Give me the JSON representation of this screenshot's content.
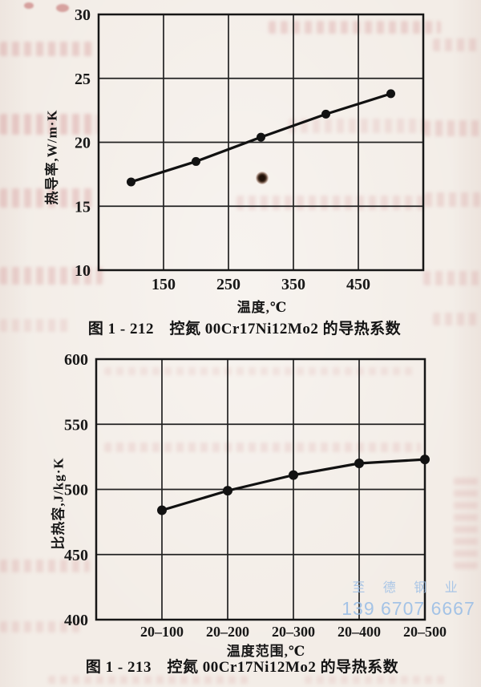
{
  "page": {
    "background_color": "#f3ede7",
    "ink_color": "#161616",
    "bleed_through_color": "#ce8082",
    "watermark": {
      "line1": "至 德 钢 业",
      "line2": "139 6707 6667",
      "color": "#97bce6"
    }
  },
  "chart_data": [
    {
      "id": "fig-1-212",
      "type": "line",
      "series": [
        {
          "name": "thermal-conductivity",
          "x": [
            100,
            200,
            300,
            400,
            500
          ],
          "values": [
            16.9,
            18.5,
            20.4,
            22.2,
            23.8
          ]
        }
      ],
      "xlabel": "温度,℃",
      "ylabel": "热导率,W/m·K",
      "caption": "图 1 - 212　控氮 00Cr17Ni12Mo2 的导热系数",
      "xlim": [
        50,
        550
      ],
      "ylim": [
        10,
        30
      ],
      "x_ticks": [
        150,
        250,
        350,
        450
      ],
      "y_ticks": [
        10,
        15,
        20,
        25,
        30
      ],
      "grid": true,
      "legend_position": "none",
      "marker": "filled-circle"
    },
    {
      "id": "fig-1-213",
      "type": "line",
      "categories": [
        "20–100",
        "20–200",
        "20–300",
        "20–400",
        "20–500"
      ],
      "values": [
        484,
        499,
        511,
        520,
        523
      ],
      "xlabel": "温度范围,℃",
      "ylabel": "比热容,J/kg·K",
      "caption": "图 1 - 213　控氮 00Cr17Ni12Mo2 的导热系数",
      "ylim": [
        400,
        600
      ],
      "y_ticks": [
        400,
        450,
        500,
        550,
        600
      ],
      "grid": true,
      "legend_position": "none",
      "marker": "filled-circle"
    }
  ]
}
